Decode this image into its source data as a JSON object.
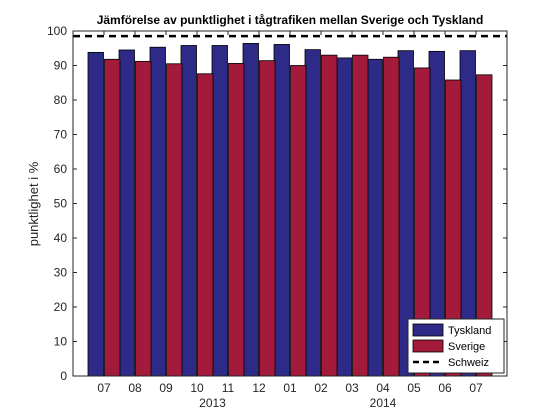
{
  "chart_data": {
    "type": "bar",
    "title": "Jämförelse av punktlighet i tågtrafiken mellan Sverige och Tyskland",
    "xlabel": "",
    "ylabel": "punktlighet i %",
    "ylim": [
      0,
      100
    ],
    "yticks": [
      0,
      10,
      20,
      30,
      40,
      50,
      60,
      70,
      80,
      90,
      100
    ],
    "categories": [
      "07",
      "08",
      "09",
      "10",
      "11",
      "12",
      "01",
      "02",
      "03",
      "04",
      "05",
      "06",
      "07"
    ],
    "year_labels": [
      {
        "label": "2013",
        "category_index": 3.5
      },
      {
        "label": "2014",
        "category_index": 9
      }
    ],
    "series": [
      {
        "name": "Tyskland",
        "color": "#2e2a87",
        "values": [
          93.8,
          94.5,
          95.3,
          95.8,
          95.8,
          96.4,
          96.1,
          94.6,
          92.2,
          91.8,
          94.3,
          94.1,
          94.3
        ]
      },
      {
        "name": "Sverige",
        "color": "#a31a3a",
        "values": [
          91.8,
          91.2,
          90.5,
          87.6,
          90.6,
          91.4,
          90.0,
          93.0,
          93.0,
          92.4,
          89.3,
          85.8,
          87.3
        ]
      }
    ],
    "reference_lines": [
      {
        "name": "Schweiz",
        "value": 98.5,
        "style": "dashed",
        "color": "#000000"
      }
    ],
    "legend_position": "bottom-right",
    "grid": false
  }
}
